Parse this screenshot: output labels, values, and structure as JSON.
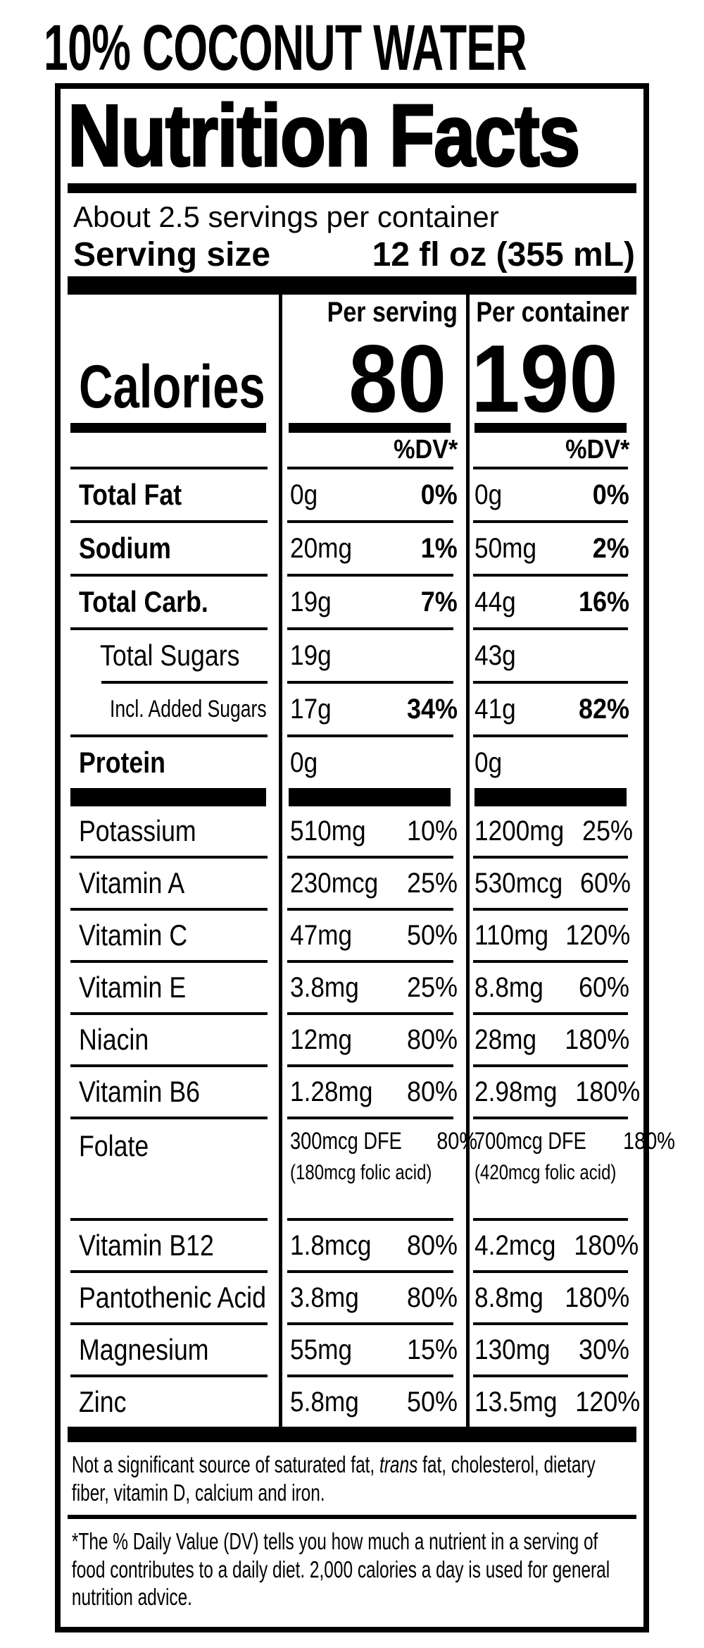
{
  "product_title": "10% COCONUT WATER",
  "label": {
    "heading": "Nutrition Facts",
    "servings_per_container": "About 2.5 servings per container",
    "serving_size_label": "Serving size",
    "serving_size_value": "12 fl oz (355 mL)",
    "column_headers": [
      "Per serving",
      "Per container"
    ],
    "calories_label": "Calories",
    "calories_per_serving": "80",
    "calories_per_container": "190",
    "dv_header": "%DV*",
    "rows": [
      {
        "name": "Total Fat",
        "bold": true,
        "indent": 0,
        "s_amt": "0g",
        "s_dv": "0%",
        "c_amt": "0g",
        "c_dv": "0%",
        "dv_bold": true,
        "rule": "full"
      },
      {
        "name": "Sodium",
        "bold": true,
        "indent": 0,
        "s_amt": "20mg",
        "s_dv": "1%",
        "c_amt": "50mg",
        "c_dv": "2%",
        "dv_bold": true,
        "rule": "full"
      },
      {
        "name": "Total Carb.",
        "bold": true,
        "indent": 0,
        "s_amt": "19g",
        "s_dv": "7%",
        "c_amt": "44g",
        "c_dv": "16%",
        "dv_bold": true,
        "rule": "full"
      },
      {
        "name": "Total Sugars",
        "bold": false,
        "indent": 1,
        "s_amt": "19g",
        "c_amt": "43g",
        "rule": "full"
      },
      {
        "name": "Incl. Added Sugars",
        "bold": false,
        "indent": 2,
        "small": true,
        "s_amt": "17g",
        "s_dv": "34%",
        "c_amt": "41g",
        "c_dv": "82%",
        "dv_bold": true,
        "rule": "indent"
      },
      {
        "name": "Protein",
        "bold": true,
        "indent": 0,
        "s_amt": "0g",
        "c_amt": "0g",
        "rule": "full"
      },
      {
        "name": "Potassium",
        "bold": false,
        "indent": 0,
        "s_amt": "510mg",
        "s_dv": "10%",
        "c_amt": "1200mg",
        "c_dv": "25%",
        "rule": "thick"
      },
      {
        "name": "Vitamin A",
        "bold": false,
        "indent": 0,
        "s_amt": "230mcg",
        "s_dv": "25%",
        "c_amt": "530mcg",
        "c_dv": "60%",
        "rule": "full"
      },
      {
        "name": "Vitamin C",
        "bold": false,
        "indent": 0,
        "s_amt": "47mg",
        "s_dv": "50%",
        "c_amt": "110mg",
        "c_dv": "120%",
        "rule": "full"
      },
      {
        "name": "Vitamin E",
        "bold": false,
        "indent": 0,
        "s_amt": "3.8mg",
        "s_dv": "25%",
        "c_amt": "8.8mg",
        "c_dv": "60%",
        "rule": "full"
      },
      {
        "name": "Niacin",
        "bold": false,
        "indent": 0,
        "s_amt": "12mg",
        "s_dv": "80%",
        "c_amt": "28mg",
        "c_dv": "180%",
        "rule": "full"
      },
      {
        "name": "Vitamin B6",
        "bold": false,
        "indent": 0,
        "s_amt": "1.28mg",
        "s_dv": "80%",
        "c_amt": "2.98mg",
        "c_dv": "180%",
        "rule": "full"
      },
      {
        "name": "Folate",
        "bold": false,
        "indent": 0,
        "tall": true,
        "s_amt": "300mcg DFE",
        "s_dv": "80%",
        "s_sub": "(180mcg folic acid)",
        "c_amt": "700mcg DFE",
        "c_dv": "180%",
        "c_sub": "(420mcg folic acid)",
        "rule": "full"
      },
      {
        "name": "Vitamin B12",
        "bold": false,
        "indent": 0,
        "s_amt": "1.8mcg",
        "s_dv": "80%",
        "c_amt": "4.2mcg",
        "c_dv": "180%",
        "rule": "full"
      },
      {
        "name": "Pantothenic Acid",
        "bold": false,
        "indent": 0,
        "s_amt": "3.8mg",
        "s_dv": "80%",
        "c_amt": "8.8mg",
        "c_dv": "180%",
        "rule": "full"
      },
      {
        "name": "Magnesium",
        "bold": false,
        "indent": 0,
        "s_amt": "55mg",
        "s_dv": "15%",
        "c_amt": "130mg",
        "c_dv": "30%",
        "rule": "full"
      },
      {
        "name": "Zinc",
        "bold": false,
        "indent": 0,
        "s_amt": "5.8mg",
        "s_dv": "50%",
        "c_amt": "13.5mg",
        "c_dv": "120%",
        "rule": "full"
      }
    ],
    "footnote_sources": {
      "pre": "Not a significant source of saturated fat, ",
      "italic": "trans",
      "post": " fat, cholesterol, dietary fiber, vitamin D, calcium and iron."
    },
    "footnote_dv": "*The % Daily Value (DV) tells you how much a nutrient in a serving of food contributes to a daily diet. 2,000 calories a day is used for general nutrition advice."
  }
}
